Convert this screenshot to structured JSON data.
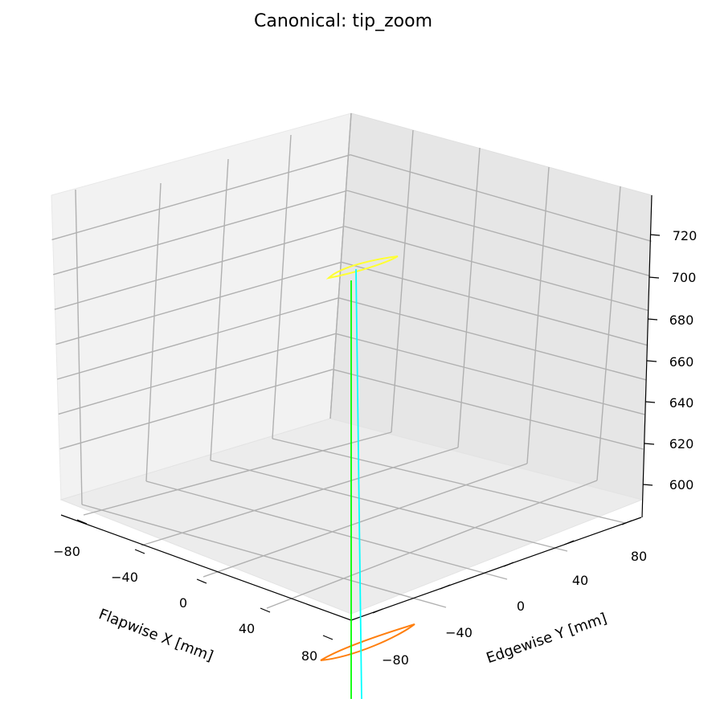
{
  "chart_data": {
    "type": "line3d",
    "title": "Canonical: tip_zoom",
    "xlabel": "Flapwise X [mm]",
    "ylabel": "Edgewise Y [mm]",
    "zlabel": "",
    "x_ticks": [
      "−80",
      "−40",
      "0",
      "40",
      "80"
    ],
    "y_ticks": [
      "−80",
      "−40",
      "0",
      "40",
      "80"
    ],
    "z_ticks": [
      "600",
      "620",
      "640",
      "660",
      "680",
      "700",
      "720"
    ],
    "grid": true,
    "series": [
      {
        "color": "#ffff33",
        "kind": "airfoil-section",
        "z": 700
      },
      {
        "color": "#ff7f0e",
        "kind": "airfoil-section",
        "z": 560
      },
      {
        "color": "#00ff00",
        "kind": "vertical-line"
      },
      {
        "color": "#00ffff",
        "kind": "vertical-line"
      }
    ]
  }
}
